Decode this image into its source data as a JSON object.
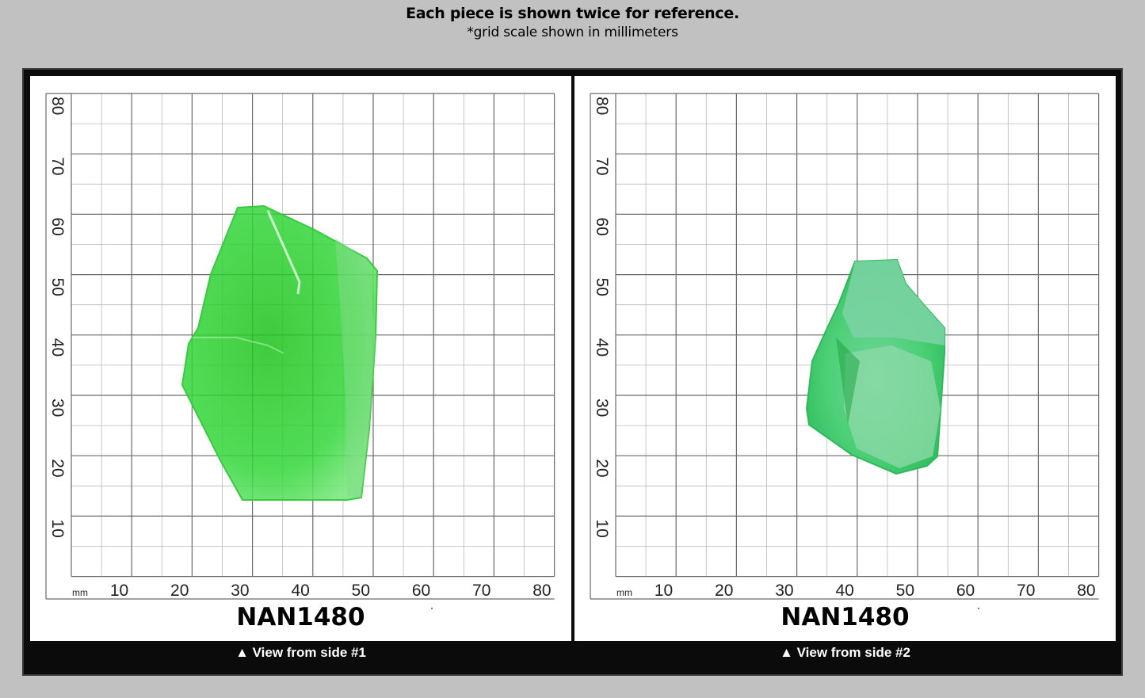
{
  "header": {
    "title": "Each piece is shown twice for reference.",
    "subtitle": "*grid scale shown in millimeters"
  },
  "grid": {
    "unit_label": "mm",
    "x_ticks": [
      "10",
      "20",
      "30",
      "40",
      "50",
      "60",
      "70",
      "80"
    ],
    "y_ticks": [
      "10",
      "20",
      "30",
      "40",
      "50",
      "60",
      "70",
      "80"
    ]
  },
  "panels": [
    {
      "code": "NAN1480",
      "caption": "▲ View from side #1",
      "stone_color": "#2fd13a"
    },
    {
      "code": "NAN1480",
      "caption": "▲ View from side #2",
      "stone_color": "#3ccf6a"
    }
  ]
}
